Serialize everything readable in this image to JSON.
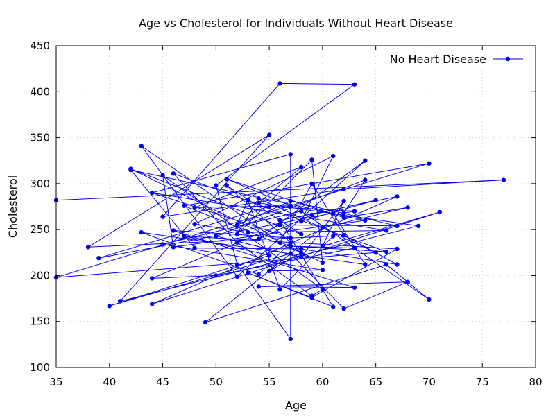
{
  "chart_data": {
    "type": "line",
    "title": "Age vs Cholesterol for Individuals Without Heart Disease",
    "xlabel": "Age",
    "ylabel": "Cholesterol",
    "xlim": [
      35,
      80
    ],
    "ylim": [
      100,
      450
    ],
    "x_ticks": [
      35,
      40,
      45,
      50,
      55,
      60,
      65,
      70,
      75,
      80
    ],
    "y_ticks": [
      100,
      150,
      200,
      250,
      300,
      350,
      400,
      450
    ],
    "grid": true,
    "legend_position": "top-right",
    "series_color": "#0000ee",
    "series": [
      {
        "name": "No Heart Disease",
        "points": [
          [
            35,
            282
          ],
          [
            77,
            304
          ],
          [
            62,
            294
          ],
          [
            45,
            264
          ],
          [
            56,
            409
          ],
          [
            63,
            408
          ],
          [
            50,
            298
          ],
          [
            52,
            212
          ],
          [
            57,
            131
          ],
          [
            57,
            332
          ],
          [
            44,
            290
          ],
          [
            66,
            249
          ],
          [
            53,
            247
          ],
          [
            48,
            256
          ],
          [
            61,
            330
          ],
          [
            58,
            259
          ],
          [
            65,
            282
          ],
          [
            59,
            266
          ],
          [
            54,
            240
          ],
          [
            64,
            325
          ],
          [
            52,
            199
          ],
          [
            43,
            341
          ],
          [
            56,
            236
          ],
          [
            59,
            300
          ],
          [
            62,
            244
          ],
          [
            67,
            212
          ],
          [
            58,
            229
          ],
          [
            48,
            230
          ],
          [
            42,
            315
          ],
          [
            64,
            260
          ],
          [
            46,
            231
          ],
          [
            45,
            309
          ],
          [
            60,
            185
          ],
          [
            59,
            178
          ],
          [
            52,
            236
          ],
          [
            46,
            311
          ],
          [
            66,
            226
          ],
          [
            57,
            232
          ],
          [
            63,
            230
          ],
          [
            50,
            200
          ],
          [
            44,
            197
          ],
          [
            56,
            255
          ],
          [
            67,
            254
          ],
          [
            57,
            281
          ],
          [
            52,
            255
          ],
          [
            53,
            282
          ],
          [
            56,
            185
          ],
          [
            61,
            243
          ],
          [
            38,
            231
          ],
          [
            55,
            353
          ],
          [
            41,
            172
          ],
          [
            69,
            254
          ],
          [
            54,
            279
          ],
          [
            58,
            318
          ],
          [
            48,
            274
          ],
          [
            57,
            276
          ],
          [
            51,
            305
          ],
          [
            62,
            263
          ],
          [
            68,
            274
          ],
          [
            60,
            252
          ],
          [
            49,
            149
          ],
          [
            66,
            212
          ],
          [
            70,
            174
          ],
          [
            58,
            270
          ],
          [
            45,
            234
          ],
          [
            60,
            206
          ],
          [
            55,
            205
          ],
          [
            58,
            225
          ],
          [
            47,
            276
          ],
          [
            70,
            322
          ],
          [
            35,
            198
          ],
          [
            65,
            225
          ],
          [
            54,
            284
          ],
          [
            52,
            245
          ],
          [
            59,
            326
          ],
          [
            60,
            214
          ],
          [
            42,
            316
          ],
          [
            58,
            245
          ],
          [
            51,
            298
          ],
          [
            57,
            236
          ],
          [
            54,
            201
          ],
          [
            43,
            247
          ],
          [
            64,
            212
          ],
          [
            61,
            268
          ],
          [
            39,
            219
          ],
          [
            55,
            275
          ],
          [
            63,
            270
          ],
          [
            62,
            268
          ],
          [
            64,
            304
          ],
          [
            50,
            243
          ],
          [
            58,
            220
          ],
          [
            62,
            281
          ],
          [
            60,
            232
          ],
          [
            71,
            269
          ],
          [
            44,
            169
          ],
          [
            67,
            286
          ],
          [
            56,
            260
          ],
          [
            61,
            166
          ],
          [
            53,
            203
          ],
          [
            59,
            176
          ],
          [
            67,
            229
          ],
          [
            47,
            243
          ],
          [
            55,
            222
          ],
          [
            40,
            167
          ],
          [
            57,
            224
          ],
          [
            62,
            164
          ],
          [
            68,
            193
          ],
          [
            54,
            188
          ],
          [
            63,
            187
          ],
          [
            46,
            249
          ],
          [
            57,
            241
          ],
          [
            44,
            290
          ]
        ]
      }
    ]
  }
}
